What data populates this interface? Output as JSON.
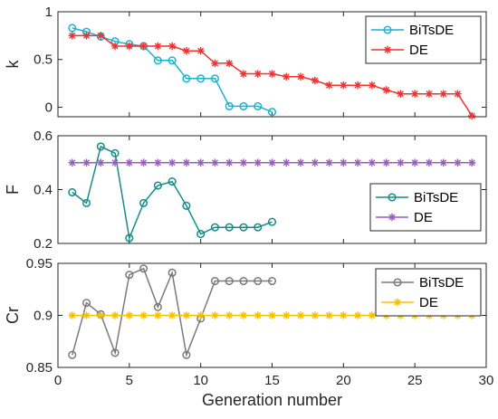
{
  "chart_data": [
    {
      "type": "line",
      "ylabel": "k",
      "xlabel": "",
      "xlim": [
        0,
        30
      ],
      "ylim": [
        -0.1,
        1
      ],
      "yticks": [
        0,
        0.5,
        1
      ],
      "yticklabels": [
        "0",
        "0.5",
        "1"
      ],
      "xticks": [
        0,
        5,
        10,
        15,
        20,
        25,
        30
      ],
      "grid": false,
      "legend_position": "top-right",
      "series": [
        {
          "name": "BiTsDE",
          "color": "#19b4d2",
          "marker": "circle",
          "x": [
            1,
            2,
            3,
            4,
            5,
            6,
            7,
            8,
            9,
            10,
            11,
            12,
            13,
            14,
            15
          ],
          "y": [
            0.83,
            0.79,
            0.74,
            0.69,
            0.66,
            0.64,
            0.49,
            0.49,
            0.3,
            0.3,
            0.3,
            0.01,
            0.01,
            0.01,
            -0.05
          ]
        },
        {
          "name": "DE",
          "color": "#f03232",
          "marker": "star",
          "x": [
            1,
            2,
            3,
            4,
            5,
            6,
            7,
            8,
            9,
            10,
            11,
            12,
            13,
            14,
            15,
            16,
            17,
            18,
            19,
            20,
            21,
            22,
            23,
            24,
            25,
            26,
            27,
            28,
            29
          ],
          "y": [
            0.75,
            0.75,
            0.75,
            0.64,
            0.64,
            0.64,
            0.64,
            0.64,
            0.59,
            0.59,
            0.46,
            0.46,
            0.35,
            0.35,
            0.35,
            0.32,
            0.32,
            0.28,
            0.23,
            0.23,
            0.23,
            0.23,
            0.18,
            0.14,
            0.14,
            0.14,
            0.14,
            0.14,
            -0.09
          ]
        }
      ]
    },
    {
      "type": "line",
      "ylabel": "F",
      "xlabel": "",
      "xlim": [
        0,
        30
      ],
      "ylim": [
        0.2,
        0.6
      ],
      "yticks": [
        0.2,
        0.4,
        0.6
      ],
      "yticklabels": [
        "0.2",
        "0.4",
        "0.6"
      ],
      "xticks": [
        0,
        5,
        10,
        15,
        20,
        25,
        30
      ],
      "grid": false,
      "legend_position": "bottom-right",
      "series": [
        {
          "name": "BiTsDE",
          "color": "#168c8c",
          "marker": "circle",
          "x": [
            1,
            2,
            3,
            4,
            5,
            6,
            7,
            8,
            9,
            10,
            11,
            12,
            13,
            14,
            15
          ],
          "y": [
            0.39,
            0.35,
            0.56,
            0.535,
            0.22,
            0.35,
            0.415,
            0.43,
            0.34,
            0.235,
            0.26,
            0.26,
            0.26,
            0.26,
            0.28
          ]
        },
        {
          "name": "DE",
          "color": "#9b5bbf",
          "marker": "star",
          "x": [
            1,
            2,
            3,
            4,
            5,
            6,
            7,
            8,
            9,
            10,
            11,
            12,
            13,
            14,
            15,
            16,
            17,
            18,
            19,
            20,
            21,
            22,
            23,
            24,
            25,
            26,
            27,
            28,
            29
          ],
          "y": [
            0.5,
            0.5,
            0.5,
            0.5,
            0.5,
            0.5,
            0.5,
            0.5,
            0.5,
            0.5,
            0.5,
            0.5,
            0.5,
            0.5,
            0.5,
            0.5,
            0.5,
            0.5,
            0.5,
            0.5,
            0.5,
            0.5,
            0.5,
            0.5,
            0.5,
            0.5,
            0.5,
            0.5,
            0.5
          ]
        }
      ]
    },
    {
      "type": "line",
      "ylabel": "Cr",
      "xlabel": "Generation number",
      "xlim": [
        0,
        30
      ],
      "ylim": [
        0.85,
        0.95
      ],
      "yticks": [
        0.85,
        0.9,
        0.95
      ],
      "yticklabels": [
        "0.85",
        "0.9",
        "0.95"
      ],
      "xticks": [
        0,
        5,
        10,
        15,
        20,
        25,
        30
      ],
      "xticklabels": [
        "0",
        "5",
        "10",
        "15",
        "20",
        "25",
        "30"
      ],
      "grid": false,
      "legend_position": "top-right",
      "series": [
        {
          "name": "BiTsDE",
          "color": "#7a7a7a",
          "marker": "circle",
          "x": [
            1,
            2,
            3,
            4,
            5,
            6,
            7,
            8,
            9,
            10,
            11,
            12,
            13,
            14,
            15
          ],
          "y": [
            0.862,
            0.912,
            0.901,
            0.864,
            0.939,
            0.945,
            0.908,
            0.941,
            0.862,
            0.897,
            0.933,
            0.933,
            0.933,
            0.933,
            0.933
          ]
        },
        {
          "name": "DE",
          "color": "#f5c000",
          "marker": "star",
          "x": [
            1,
            2,
            3,
            4,
            5,
            6,
            7,
            8,
            9,
            10,
            11,
            12,
            13,
            14,
            15,
            16,
            17,
            18,
            19,
            20,
            21,
            22,
            23,
            24,
            25,
            26,
            27,
            28,
            29
          ],
          "y": [
            0.9,
            0.9,
            0.9,
            0.9,
            0.9,
            0.9,
            0.9,
            0.9,
            0.9,
            0.9,
            0.9,
            0.9,
            0.9,
            0.9,
            0.9,
            0.9,
            0.9,
            0.9,
            0.9,
            0.9,
            0.9,
            0.9,
            0.9,
            0.9,
            0.9,
            0.9,
            0.9,
            0.9,
            0.9
          ]
        }
      ]
    }
  ]
}
